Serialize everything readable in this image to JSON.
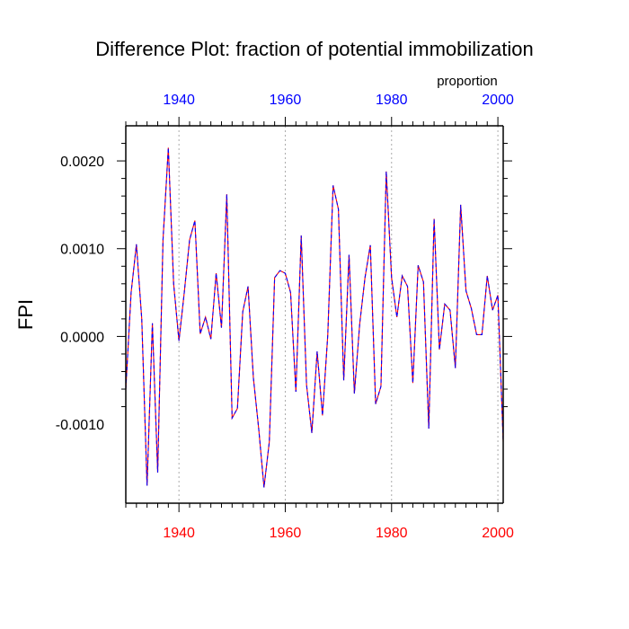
{
  "chart_data": {
    "type": "line",
    "title": "Difference Plot: fraction of potential immobilization",
    "ylabel": "FPI",
    "top_axis_label": "proportion",
    "xlim": [
      1930,
      2001
    ],
    "ylim": [
      -0.0019,
      0.0024
    ],
    "x_ticks": [
      1940,
      1960,
      1980,
      2000
    ],
    "x_tick_labels": [
      "1940",
      "1960",
      "1980",
      "2000"
    ],
    "y_ticks": [
      -0.001,
      0.0,
      0.001,
      0.002
    ],
    "y_tick_labels": [
      "-0.0010",
      "0.0000",
      "0.0010",
      "0.0020"
    ],
    "grid": "vertical dotted at major x ticks",
    "colors": {
      "bottom_tick_labels": "#ff0000",
      "top_tick_labels": "#0000ff",
      "line_a": "#ff0000",
      "line_b": "#0000ff",
      "grid": "#aaaaaa",
      "axis": "#000000"
    },
    "series": [
      {
        "name": "proportion",
        "x": [
          1930,
          1931,
          1932,
          1933,
          1934,
          1935,
          1936,
          1937,
          1938,
          1939,
          1940,
          1941,
          1942,
          1943,
          1944,
          1945,
          1946,
          1947,
          1948,
          1949,
          1950,
          1951,
          1952,
          1953,
          1954,
          1955,
          1956,
          1957,
          1958,
          1959,
          1960,
          1961,
          1962,
          1963,
          1964,
          1965,
          1966,
          1967,
          1968,
          1969,
          1970,
          1971,
          1972,
          1973,
          1974,
          1975,
          1976,
          1977,
          1978,
          1979,
          1980,
          1981,
          1982,
          1983,
          1984,
          1985,
          1986,
          1987,
          1988,
          1989,
          1990,
          1991,
          1992,
          1993,
          1994,
          1995,
          1996,
          1997,
          1998,
          1999,
          2000,
          2001
        ],
        "y": [
          -0.0006,
          0.0005,
          0.00105,
          0.0002,
          -0.0017,
          0.00015,
          -0.00155,
          0.0011,
          0.00215,
          0.0006,
          -5e-05,
          0.0005,
          0.0011,
          0.00132,
          3e-05,
          0.00022,
          -3e-05,
          0.00072,
          0.0001,
          0.00162,
          -0.00093,
          -0.00082,
          0.00028,
          0.00057,
          -0.00047,
          -0.00105,
          -0.00172,
          -0.0012,
          0.00067,
          0.00075,
          0.00072,
          0.0005,
          -0.00063,
          0.00115,
          -0.00055,
          -0.0011,
          -0.00017,
          -0.0009,
          2e-05,
          0.00172,
          0.00145,
          -0.0005,
          0.00093,
          -0.00065,
          0.00014,
          0.00067,
          0.00104,
          -0.00077,
          -0.00057,
          0.00188,
          0.00067,
          0.00022,
          0.00069,
          0.00057,
          -0.00053,
          0.00081,
          0.00062,
          -0.00105,
          0.00134,
          -0.00015,
          0.00037,
          0.0003,
          -0.00036,
          0.0015,
          0.00052,
          0.00032,
          2e-05,
          2e-05,
          0.00069,
          0.0003,
          0.00047,
          -0.0012
        ]
      }
    ]
  }
}
